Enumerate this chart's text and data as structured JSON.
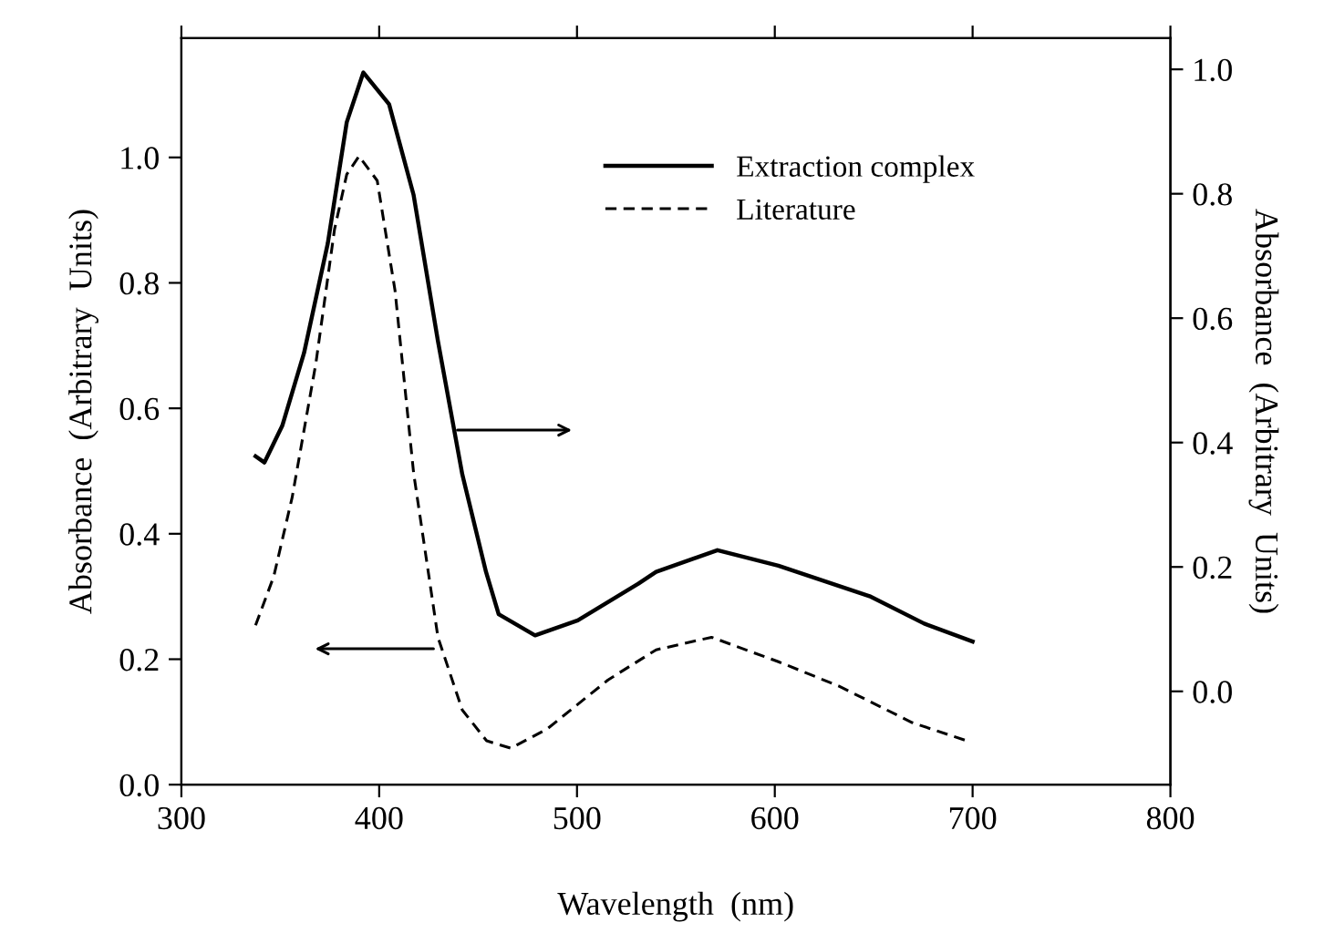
{
  "chart_data": {
    "type": "line",
    "xlabel": "Wavelength  (nm)",
    "ylabel": "Absorbance  (Arbitrary  Units)",
    "y2label": "Absorbance  (Arbitrary  Units)",
    "xlim": [
      300,
      800
    ],
    "xticks": [
      300,
      400,
      500,
      600,
      700,
      800
    ],
    "ylim": [
      0,
      1.19
    ],
    "yticks": [
      {
        "value": 0,
        "label": "0.0"
      },
      0.2,
      0.4,
      0.6,
      0.8,
      {
        "value": 1,
        "label": "1.0"
      }
    ],
    "y2lim": [
      -0.15,
      1.05
    ],
    "y2ticks": [
      {
        "value": 0,
        "label": "0.0"
      },
      0.2,
      0.4,
      0.6,
      0.8,
      {
        "value": 1,
        "label": "1.0"
      }
    ],
    "legend": "top right",
    "grid": false,
    "series": [
      {
        "name": "Extraction complex",
        "color": "#000000",
        "axis": "y2",
        "line_style": "solid",
        "x": [
          337.5,
          342,
          351,
          362,
          374,
          383.6,
          392,
          405,
          417.4,
          429.7,
          442,
          454,
          460.4,
          478.8,
          500.4,
          531,
          540,
          571,
          601.8,
          647.9,
          675.5,
          700
        ],
        "values": [
          0.378,
          0.368,
          0.427,
          0.544,
          0.72,
          0.915,
          0.995,
          0.944,
          0.798,
          0.563,
          0.349,
          0.192,
          0.124,
          0.09,
          0.114,
          0.173,
          0.192,
          0.227,
          0.202,
          0.153,
          0.109,
          0.08
        ]
      },
      {
        "name": "Literature",
        "color": "#000000",
        "axis": "y",
        "line_style": "dashed",
        "x": [
          337.5,
          346.7,
          356,
          368,
          377.4,
          383.6,
          389.8,
          399,
          408,
          417.4,
          429.7,
          442,
          454.3,
          466.6,
          485,
          515.7,
          540,
          568,
          601.8,
          632.5,
          669.4,
          697
        ],
        "values": [
          0.254,
          0.332,
          0.458,
          0.672,
          0.885,
          0.973,
          1.002,
          0.963,
          0.788,
          0.497,
          0.235,
          0.119,
          0.07,
          0.058,
          0.089,
          0.167,
          0.215,
          0.235,
          0.196,
          0.157,
          0.099,
          0.07
        ]
      }
    ]
  }
}
